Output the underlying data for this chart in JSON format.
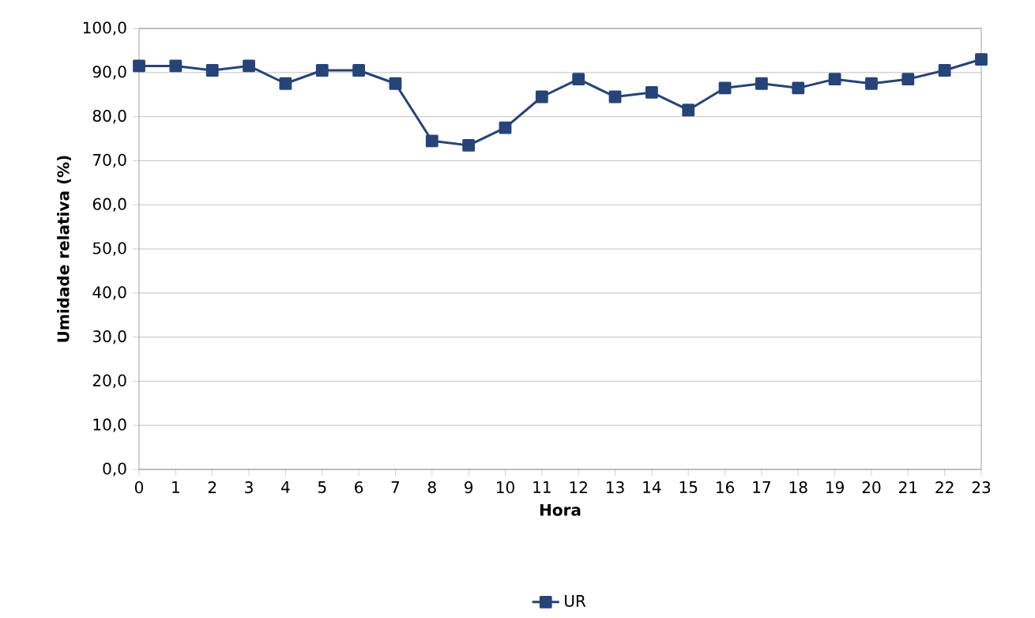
{
  "chart_data": {
    "type": "line",
    "xlabel": "Hora",
    "ylabel": "Umidade relativa (%)",
    "categories": [
      "0",
      "1",
      "2",
      "3",
      "4",
      "5",
      "6",
      "7",
      "8",
      "9",
      "10",
      "11",
      "12",
      "13",
      "14",
      "15",
      "16",
      "17",
      "18",
      "19",
      "20",
      "21",
      "22",
      "23"
    ],
    "series": [
      {
        "name": "UR",
        "color": "#264478",
        "values": [
          91.5,
          91.5,
          90.5,
          91.5,
          87.5,
          90.5,
          90.5,
          87.5,
          74.5,
          73.5,
          77.5,
          84.5,
          88.5,
          84.5,
          85.5,
          81.5,
          86.5,
          87.5,
          86.5,
          88.5,
          87.5,
          88.5,
          90.5,
          93.0
        ]
      }
    ],
    "ylim": [
      0,
      100
    ],
    "yticks": [
      {
        "value": 0,
        "label": "0,0"
      },
      {
        "value": 10,
        "label": "10,0"
      },
      {
        "value": 20,
        "label": "20,0"
      },
      {
        "value": 30,
        "label": "30,0"
      },
      {
        "value": 40,
        "label": "40,0"
      },
      {
        "value": 50,
        "label": "50,0"
      },
      {
        "value": 60,
        "label": "60,0"
      },
      {
        "value": 70,
        "label": "70,0"
      },
      {
        "value": 80,
        "label": "80,0"
      },
      {
        "value": 90,
        "label": "90,0"
      },
      {
        "value": 100,
        "label": "100,0"
      }
    ],
    "grid": "y",
    "legend": "bottom",
    "marker": "square",
    "line_style": "solid"
  }
}
